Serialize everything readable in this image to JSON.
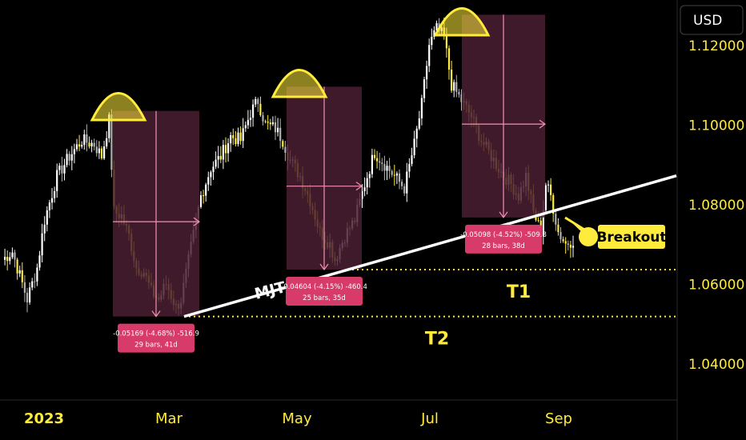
{
  "chart_data": {
    "type": "candlestick",
    "currency": "USD",
    "y_ticks": [
      1.12,
      1.1,
      1.08,
      1.06,
      1.04
    ],
    "y_tick_labels": [
      "1.12000",
      "1.10000",
      "1.08000",
      "1.06000",
      "1.04000"
    ],
    "ylim": [
      1.0307,
      1.1313
    ],
    "x_labels": [
      "2023",
      "Mar",
      "May",
      "Jul",
      "Sep"
    ],
    "price_anchors": [
      [
        0,
        1.066
      ],
      [
        4,
        1.068
      ],
      [
        10,
        1.056
      ],
      [
        14,
        1.064
      ],
      [
        17,
        1.076
      ],
      [
        22,
        1.087
      ],
      [
        27,
        1.092
      ],
      [
        32,
        1.096
      ],
      [
        37,
        1.095
      ],
      [
        40,
        1.092
      ],
      [
        43,
        1.101
      ],
      [
        45,
        1.078
      ],
      [
        48,
        1.077
      ],
      [
        51,
        1.072
      ],
      [
        54,
        1.064
      ],
      [
        57,
        1.063
      ],
      [
        60,
        1.058
      ],
      [
        63,
        1.056
      ],
      [
        66,
        1.06
      ],
      [
        70,
        1.054
      ],
      [
        72,
        1.056
      ],
      [
        76,
        1.069
      ],
      [
        80,
        1.082
      ],
      [
        84,
        1.089
      ],
      [
        88,
        1.092
      ],
      [
        92,
        1.097
      ],
      [
        96,
        1.096
      ],
      [
        100,
        1.103
      ],
      [
        103,
        1.106
      ],
      [
        106,
        1.1
      ],
      [
        110,
        1.099
      ],
      [
        113,
        1.096
      ],
      [
        116,
        1.091
      ],
      [
        120,
        1.087
      ],
      [
        124,
        1.081
      ],
      [
        128,
        1.073
      ],
      [
        132,
        1.07
      ],
      [
        134,
        1.066
      ],
      [
        138,
        1.072
      ],
      [
        142,
        1.076
      ],
      [
        146,
        1.085
      ],
      [
        150,
        1.093
      ],
      [
        154,
        1.09
      ],
      [
        158,
        1.087
      ],
      [
        162,
        1.084
      ],
      [
        166,
        1.095
      ],
      [
        169,
        1.105
      ],
      [
        172,
        1.12
      ],
      [
        175,
        1.124
      ],
      [
        178,
        1.122
      ],
      [
        181,
        1.11
      ],
      [
        185,
        1.106
      ],
      [
        189,
        1.102
      ],
      [
        193,
        1.096
      ],
      [
        197,
        1.092
      ],
      [
        201,
        1.088
      ],
      [
        205,
        1.085
      ],
      [
        208,
        1.082
      ],
      [
        211,
        1.087
      ],
      [
        214,
        1.078
      ],
      [
        217,
        1.073
      ],
      [
        219,
        1.085
      ],
      [
        221,
        1.082
      ],
      [
        224,
        1.073
      ],
      [
        227,
        1.07
      ],
      [
        230,
        1.071
      ]
    ],
    "measurements": [
      {
        "label": "-0.05169 (-4.68%) -516.9",
        "sublabel": "29 bars, 41d",
        "high": 1.1034,
        "low": 1.0517
      },
      {
        "label": "-0.04604 (-4.15%) -460.4",
        "sublabel": "25 bars, 35d",
        "high": 1.1095,
        "low": 1.0635
      },
      {
        "label": "-0.05098 (-4.52%) -509.8",
        "sublabel": "28 bars, 38d",
        "high": 1.1276,
        "low": 1.0766
      }
    ],
    "targets": [
      {
        "label": "T1",
        "value": 1.0635
      },
      {
        "label": "T2",
        "value": 1.0517
      }
    ],
    "trendline": {
      "label": "MJT",
      "from": 1.0517,
      "to": 1.0871
    },
    "annotation": "Breakout",
    "colors": {
      "background": "#000000",
      "candle_up": "#ffffff",
      "candle_down": "#ffeb3b",
      "measure_box": "#4a1f33",
      "measure_line": "#f48fb1",
      "measure_label": "#d63b6a",
      "accent_yellow": "#ffeb3b",
      "axis_text": "#ffeb3b",
      "trendline": "#ffffff"
    }
  }
}
